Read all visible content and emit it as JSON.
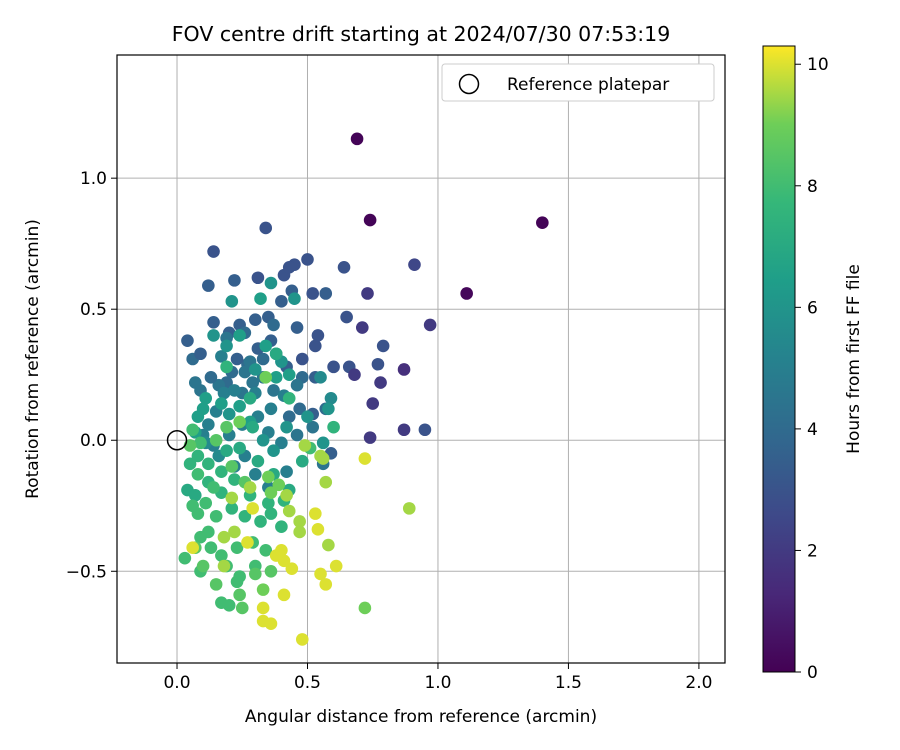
{
  "chart_data": {
    "type": "scatter",
    "title": "FOV centre drift starting at 2024/07/30 07:53:19",
    "xlabel": "Angular distance from reference (arcmin)",
    "ylabel": "Rotation from reference (arcmin)",
    "xlim": [
      -0.23,
      2.1
    ],
    "ylim": [
      -0.85,
      1.47
    ],
    "xticks": [
      0.0,
      0.5,
      1.0,
      1.5,
      2.0
    ],
    "xtick_labels": [
      "0.0",
      "0.5",
      "1.0",
      "1.5",
      "2.0"
    ],
    "yticks": [
      -0.5,
      0.0,
      0.5,
      1.0
    ],
    "ytick_labels": [
      "−0.5",
      "0.0",
      "0.5",
      "1.0"
    ],
    "grid": true,
    "legend": {
      "position": "top-right",
      "entries": [
        {
          "label": "Reference platepar",
          "marker": "open-circle"
        }
      ]
    },
    "reference_point": {
      "x": 0.0,
      "y": 0.0
    },
    "colorbar": {
      "label": "Hours from first FF file",
      "colormap": "viridis",
      "range": [
        0,
        10.3
      ],
      "ticks": [
        0,
        2,
        4,
        6,
        8,
        10
      ],
      "tick_labels": [
        "0",
        "2",
        "4",
        "6",
        "8",
        "10"
      ]
    },
    "series": [
      {
        "points": [
          [
            0.69,
            1.15,
            0.1
          ],
          [
            0.74,
            0.84,
            0.1
          ],
          [
            1.4,
            0.83,
            0.1
          ],
          [
            1.11,
            0.56,
            0.2
          ],
          [
            0.34,
            0.81,
            3.0
          ],
          [
            0.14,
            0.72,
            3.0
          ],
          [
            0.45,
            0.67,
            3.0
          ],
          [
            0.5,
            0.69,
            3.0
          ],
          [
            0.91,
            0.67,
            2.5
          ],
          [
            0.64,
            0.66,
            3.0
          ],
          [
            0.73,
            0.56,
            2.0
          ],
          [
            0.97,
            0.44,
            2.0
          ],
          [
            0.79,
            0.36,
            3.0
          ],
          [
            0.77,
            0.29,
            3.0
          ],
          [
            0.78,
            0.22,
            2.0
          ],
          [
            0.75,
            0.14,
            2.0
          ],
          [
            0.87,
            0.27,
            1.6
          ],
          [
            0.74,
            0.01,
            2.0
          ],
          [
            0.87,
            0.04,
            2.0
          ],
          [
            0.95,
            0.04,
            3.0
          ],
          [
            0.66,
            0.28,
            3.0
          ],
          [
            0.68,
            0.25,
            2.0
          ],
          [
            0.71,
            0.43,
            2.0
          ],
          [
            0.6,
            0.28,
            3.0
          ],
          [
            0.53,
            0.36,
            3.0
          ],
          [
            0.54,
            0.4,
            3.0
          ],
          [
            0.52,
            0.56,
            3.0
          ],
          [
            0.57,
            0.56,
            3.5
          ],
          [
            0.44,
            0.57,
            3.5
          ],
          [
            0.4,
            0.53,
            3.5
          ],
          [
            0.35,
            0.47,
            3.5
          ],
          [
            0.3,
            0.46,
            3.5
          ],
          [
            0.24,
            0.44,
            3.5
          ],
          [
            0.2,
            0.41,
            3.5
          ],
          [
            0.14,
            0.45,
            3.5
          ],
          [
            0.12,
            0.59,
            3.5
          ],
          [
            0.22,
            0.61,
            3.5
          ],
          [
            0.31,
            0.62,
            3.0
          ],
          [
            0.41,
            0.63,
            3.0
          ],
          [
            0.43,
            0.66,
            3.0
          ],
          [
            0.04,
            0.38,
            3.5
          ],
          [
            0.06,
            0.31,
            4.0
          ],
          [
            0.09,
            0.33,
            3.5
          ],
          [
            0.65,
            0.47,
            3.0
          ],
          [
            0.46,
            0.43,
            3.5
          ],
          [
            0.48,
            0.31,
            3.0
          ],
          [
            0.38,
            0.33,
            3.5
          ],
          [
            0.33,
            0.31,
            4.0
          ],
          [
            0.27,
            0.29,
            4.0
          ],
          [
            0.21,
            0.26,
            4.0
          ],
          [
            0.19,
            0.22,
            4.0
          ],
          [
            0.16,
            0.21,
            4.5
          ],
          [
            0.13,
            0.24,
            4.0
          ],
          [
            0.09,
            0.19,
            4.5
          ],
          [
            0.07,
            0.22,
            4.5
          ],
          [
            0.23,
            0.31,
            3.5
          ],
          [
            0.31,
            0.35,
            3.5
          ],
          [
            0.36,
            0.38,
            3.5
          ],
          [
            0.42,
            0.28,
            3.5
          ],
          [
            0.48,
            0.24,
            4.0
          ],
          [
            0.53,
            0.24,
            3.5
          ],
          [
            0.57,
            0.12,
            4.0
          ],
          [
            0.52,
            0.1,
            3.5
          ],
          [
            0.59,
            -0.05,
            3.5
          ],
          [
            0.47,
            0.12,
            4.0
          ],
          [
            0.43,
            0.09,
            4.0
          ],
          [
            0.37,
            0.19,
            4.5
          ],
          [
            0.29,
            0.22,
            4.5
          ],
          [
            0.25,
            0.18,
            4.5
          ],
          [
            0.18,
            0.18,
            5.0
          ],
          [
            0.15,
            0.11,
            5.0
          ],
          [
            0.12,
            0.06,
            5.0
          ],
          [
            0.1,
            0.02,
            5.0
          ],
          [
            0.14,
            -0.02,
            5.0
          ],
          [
            0.2,
            0.02,
            5.0
          ],
          [
            0.25,
            0.06,
            5.0
          ],
          [
            0.31,
            0.09,
            5.0
          ],
          [
            0.35,
            0.03,
            5.0
          ],
          [
            0.4,
            -0.01,
            5.0
          ],
          [
            0.46,
            0.02,
            4.5
          ],
          [
            0.52,
            0.05,
            4.5
          ],
          [
            0.56,
            -0.09,
            4.5
          ],
          [
            0.42,
            -0.12,
            5.0
          ],
          [
            0.35,
            -0.18,
            5.0
          ],
          [
            0.3,
            -0.13,
            5.0
          ],
          [
            0.26,
            -0.06,
            5.0
          ],
          [
            0.22,
            -0.1,
            5.0
          ],
          [
            0.16,
            -0.06,
            5.5
          ],
          [
            0.11,
            -0.01,
            5.5
          ],
          [
            0.28,
            0.3,
            4.5
          ],
          [
            0.26,
            0.26,
            4.5
          ],
          [
            0.33,
            0.24,
            4.5
          ],
          [
            0.37,
            0.44,
            4.0
          ],
          [
            0.26,
            0.41,
            4.0
          ],
          [
            0.19,
            0.39,
            4.5
          ],
          [
            0.17,
            0.32,
            5.0
          ],
          [
            0.22,
            0.19,
            5.0
          ],
          [
            0.3,
            0.18,
            5.0
          ],
          [
            0.36,
            0.12,
            5.0
          ],
          [
            0.41,
            0.17,
            5.0
          ],
          [
            0.46,
            0.21,
            4.5
          ],
          [
            0.55,
            0.24,
            5.5
          ],
          [
            0.59,
            0.16,
            5.5
          ],
          [
            0.58,
            0.12,
            6.0
          ],
          [
            0.32,
            0.54,
            6.5
          ],
          [
            0.21,
            0.53,
            6.0
          ],
          [
            0.36,
            0.6,
            6.0
          ],
          [
            0.45,
            0.54,
            6.0
          ],
          [
            0.24,
            0.4,
            6.5
          ],
          [
            0.19,
            0.36,
            6.0
          ],
          [
            0.14,
            0.4,
            6.0
          ],
          [
            0.34,
            0.36,
            6.5
          ],
          [
            0.4,
            0.3,
            6.0
          ],
          [
            0.43,
            0.25,
            6.5
          ],
          [
            0.38,
            0.24,
            6.5
          ],
          [
            0.3,
            0.27,
            6.0
          ],
          [
            0.24,
            0.13,
            6.5
          ],
          [
            0.2,
            0.1,
            6.0
          ],
          [
            0.17,
            0.14,
            6.5
          ],
          [
            0.11,
            0.16,
            6.5
          ],
          [
            0.08,
            0.09,
            6.5
          ],
          [
            0.07,
            0.03,
            6.5
          ],
          [
            0.1,
            0.12,
            6.5
          ],
          [
            0.28,
            0.07,
            6.5
          ],
          [
            0.33,
            0.0,
            6.0
          ],
          [
            0.37,
            -0.04,
            6.0
          ],
          [
            0.42,
            0.05,
            6.0
          ],
          [
            0.56,
            -0.01,
            6.0
          ],
          [
            0.5,
            0.09,
            6.0
          ],
          [
            0.6,
            0.05,
            7.5
          ],
          [
            0.43,
            0.16,
            7.5
          ],
          [
            0.38,
            0.33,
            7.0
          ],
          [
            0.19,
            0.28,
            7.5
          ],
          [
            0.28,
            0.16,
            7.0
          ],
          [
            0.29,
            0.05,
            7.0
          ],
          [
            0.24,
            -0.03,
            7.0
          ],
          [
            0.19,
            -0.04,
            7.0
          ],
          [
            0.31,
            -0.08,
            7.0
          ],
          [
            0.37,
            -0.13,
            7.0
          ],
          [
            0.43,
            -0.19,
            7.0
          ],
          [
            0.51,
            -0.03,
            8.0
          ],
          [
            0.48,
            -0.08,
            7.0
          ],
          [
            0.41,
            -0.23,
            7.5
          ],
          [
            0.35,
            -0.24,
            7.5
          ],
          [
            0.28,
            -0.21,
            7.5
          ],
          [
            0.22,
            -0.15,
            7.5
          ],
          [
            0.17,
            -0.12,
            7.5
          ],
          [
            0.12,
            -0.09,
            7.5
          ],
          [
            0.08,
            -0.06,
            7.5
          ],
          [
            0.05,
            -0.09,
            7.5
          ],
          [
            0.04,
            -0.19,
            7.0
          ],
          [
            0.07,
            -0.21,
            7.0
          ],
          [
            0.12,
            -0.16,
            7.5
          ],
          [
            0.17,
            -0.2,
            7.5
          ],
          [
            0.21,
            -0.26,
            7.5
          ],
          [
            0.26,
            -0.29,
            7.5
          ],
          [
            0.32,
            -0.31,
            7.5
          ],
          [
            0.36,
            -0.28,
            7.5
          ],
          [
            0.4,
            -0.33,
            7.5
          ],
          [
            0.15,
            -0.29,
            8.0
          ],
          [
            0.12,
            -0.35,
            8.0
          ],
          [
            0.09,
            -0.37,
            8.0
          ],
          [
            0.13,
            -0.41,
            8.0
          ],
          [
            0.17,
            -0.44,
            8.0
          ],
          [
            0.23,
            -0.41,
            8.0
          ],
          [
            0.29,
            -0.39,
            8.0
          ],
          [
            0.34,
            -0.42,
            8.0
          ],
          [
            0.36,
            -0.5,
            8.5
          ],
          [
            0.3,
            -0.48,
            8.0
          ],
          [
            0.24,
            -0.52,
            8.0
          ],
          [
            0.19,
            -0.48,
            8.0
          ],
          [
            0.15,
            -0.55,
            8.5
          ],
          [
            0.09,
            -0.5,
            8.0
          ],
          [
            0.03,
            -0.45,
            8.0
          ],
          [
            0.07,
            -0.41,
            8.5
          ],
          [
            0.17,
            -0.62,
            8.0
          ],
          [
            0.23,
            -0.54,
            8.0
          ],
          [
            0.2,
            -0.63,
            8.0
          ],
          [
            0.24,
            -0.59,
            8.5
          ],
          [
            0.25,
            -0.64,
            8.5
          ],
          [
            0.3,
            -0.51,
            8.5
          ],
          [
            0.33,
            -0.57,
            9.0
          ],
          [
            0.08,
            -0.13,
            8.0
          ],
          [
            0.09,
            -0.01,
            8.0
          ],
          [
            0.06,
            0.04,
            8.0
          ],
          [
            0.05,
            -0.02,
            8.5
          ],
          [
            0.15,
            0.0,
            8.5
          ],
          [
            0.19,
            0.05,
            8.5
          ],
          [
            0.21,
            -0.1,
            8.5
          ],
          [
            0.26,
            -0.16,
            8.5
          ],
          [
            0.35,
            -0.14,
            9.0
          ],
          [
            0.39,
            -0.17,
            9.0
          ],
          [
            0.42,
            -0.21,
            9.5
          ],
          [
            0.43,
            -0.27,
            9.5
          ],
          [
            0.47,
            -0.31,
            9.5
          ],
          [
            0.47,
            -0.35,
            9.5
          ],
          [
            0.49,
            -0.02,
            9.5
          ],
          [
            0.55,
            -0.06,
            9.5
          ],
          [
            0.56,
            -0.07,
            9.5
          ],
          [
            0.57,
            -0.16,
            9.5
          ],
          [
            0.53,
            -0.28,
            10.0
          ],
          [
            0.54,
            -0.34,
            10.0
          ],
          [
            0.58,
            -0.4,
            9.5
          ],
          [
            0.61,
            -0.48,
            10.0
          ],
          [
            0.55,
            -0.51,
            10.0
          ],
          [
            0.57,
            -0.55,
            10.0
          ],
          [
            0.44,
            -0.49,
            10.0
          ],
          [
            0.41,
            -0.46,
            10.0
          ],
          [
            0.38,
            -0.44,
            10.0
          ],
          [
            0.41,
            -0.59,
            10.0
          ],
          [
            0.48,
            -0.76,
            10.0
          ],
          [
            0.33,
            -0.64,
            10.0
          ],
          [
            0.33,
            -0.69,
            10.0
          ],
          [
            0.36,
            -0.7,
            10.0
          ],
          [
            0.27,
            -0.39,
            10.0
          ],
          [
            0.18,
            -0.37,
            9.5
          ],
          [
            0.06,
            -0.41,
            10.0
          ],
          [
            0.72,
            -0.07,
            10.0
          ],
          [
            0.72,
            -0.64,
            9.0
          ],
          [
            0.89,
            -0.26,
            9.5
          ],
          [
            0.34,
            0.24,
            9.0
          ],
          [
            0.24,
            0.07,
            9.0
          ],
          [
            0.21,
            -0.22,
            9.5
          ],
          [
            0.28,
            -0.18,
            9.5
          ],
          [
            0.22,
            -0.35,
            9.5
          ],
          [
            0.18,
            -0.48,
            9.5
          ],
          [
            0.29,
            -0.26,
            10.0
          ],
          [
            0.36,
            -0.2,
            9.0
          ],
          [
            0.4,
            -0.42,
            10.0
          ],
          [
            0.08,
            -0.28,
            8.0
          ],
          [
            0.06,
            -0.25,
            8.0
          ],
          [
            0.11,
            -0.24,
            8.0
          ],
          [
            0.14,
            -0.18,
            8.0
          ],
          [
            0.1,
            -0.48,
            8.5
          ]
        ]
      }
    ]
  }
}
